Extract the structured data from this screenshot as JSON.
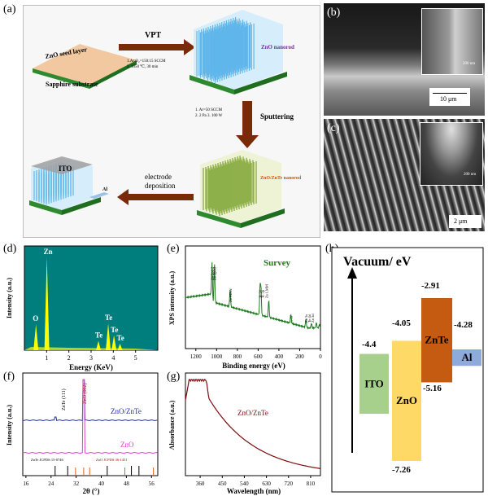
{
  "panel_labels": {
    "a": "(a)",
    "b": "(b)",
    "c": "(c)",
    "d": "(d)",
    "e": "(e)",
    "f": "(f)",
    "g": "(g)",
    "h": "(h)"
  },
  "panel_a": {
    "seed_layer": "ZnO seed layer",
    "substrate": "Sapphire  substrate",
    "vpt": "VPT",
    "vpt_cond_1": "1.Ar:O₂=150:15 SCCM",
    "vpt_cond_2": "2. 1050 ℃, 30 min",
    "nanorod": "ZnO nanorod",
    "sputtering": "Sputtering",
    "sput_cond_1": "1. Ar=50 SCCM",
    "sput_cond_2": "2. 2 Pa  3. 100 W",
    "core_shell": "ZnO/ZnTe nanorod",
    "electrode_1": "electrode",
    "electrode_2": "deposition",
    "ito": "ITO",
    "al": "Al"
  },
  "panel_b": {
    "inset_scale": "200 nm",
    "scale": "10 μm"
  },
  "panel_c": {
    "inset_scale": "200 nm",
    "scale": "2 μm"
  },
  "chart_data": [
    {
      "id": "d",
      "type": "bar",
      "title": "",
      "xlabel": "Energy (KeV)",
      "ylabel": "Intensity (a.u.)",
      "xlim": [
        0,
        6
      ],
      "xticks": [
        "1",
        "2",
        "3",
        "4",
        "5"
      ],
      "peaks": [
        {
          "label": "O",
          "x": 0.52,
          "h": 0.28
        },
        {
          "label": "Zn",
          "x": 1.01,
          "h": 1.0
        },
        {
          "label": "Te",
          "x": 3.33,
          "h": 0.1
        },
        {
          "label": "Te",
          "x": 3.77,
          "h": 0.29
        },
        {
          "label": "Te",
          "x": 4.03,
          "h": 0.16
        },
        {
          "label": "Te",
          "x": 4.3,
          "h": 0.07
        }
      ]
    },
    {
      "id": "e",
      "type": "line",
      "title": "Survey",
      "xlabel": "Binding energy (eV)",
      "ylabel": "XPS intensity (a.u.)",
      "xlim": [
        1300,
        0
      ],
      "xticks": [
        "1200",
        "1000",
        "800",
        "600",
        "400",
        "200",
        "0"
      ],
      "peak_labels": [
        "Zn 2p1/2",
        "Zn 2p3/2",
        "Zn MNN",
        "Te 3d",
        "Te 3p",
        "Zn LMM",
        "C 1s",
        "Zn 3s",
        "Te 4d",
        "Zn 3d"
      ]
    },
    {
      "id": "f",
      "type": "line",
      "title": "",
      "xlabel": "2θ  (°)",
      "ylabel": "Intensity (a.u.)",
      "xlim": [
        15,
        58
      ],
      "xticks": [
        "16",
        "24",
        "32",
        "40",
        "48",
        "56"
      ],
      "series": [
        {
          "name": "ZnO/ZnTe",
          "color": "#1f2bb5"
        },
        {
          "name": "ZnO",
          "color": "#e13ad1"
        }
      ],
      "annotations": [
        "ZnO (002)",
        "ZnTe (111)"
      ],
      "ref_znte": "ZnTe JCPDS:15-0746",
      "ref_zno": "ZnO JCPDS:36-1451"
    },
    {
      "id": "g",
      "type": "line",
      "title": "",
      "xlabel": "Wavelength (nm)",
      "ylabel": "Absorbance (a.u.)",
      "xlim": [
        300,
        850
      ],
      "xticks": [
        "360",
        "450",
        "540",
        "630",
        "720",
        "810"
      ],
      "series": [
        {
          "name": "ZnO/ZnTe",
          "color": "#7a0c0c"
        }
      ]
    },
    {
      "id": "h",
      "type": "bar",
      "title": "Vacuum/ eV",
      "bands": [
        {
          "name": "ITO",
          "top": -4.4,
          "color": "#a8d08d"
        },
        {
          "name": "ZnO",
          "top": -4.05,
          "bottom": -7.26,
          "color": "#ffd966"
        },
        {
          "name": "ZnTe",
          "top": -2.91,
          "bottom": -5.16,
          "color": "#c55a11"
        },
        {
          "name": "Al",
          "top": -4.28,
          "color": "#8eaadb"
        }
      ],
      "labels": {
        "ito_top": "-4.4",
        "zno_top": "-4.05",
        "zno_bottom": "-7.26",
        "znte_top": "-2.91",
        "znte_bottom": "-5.16",
        "al_top": "-4.28"
      }
    }
  ]
}
